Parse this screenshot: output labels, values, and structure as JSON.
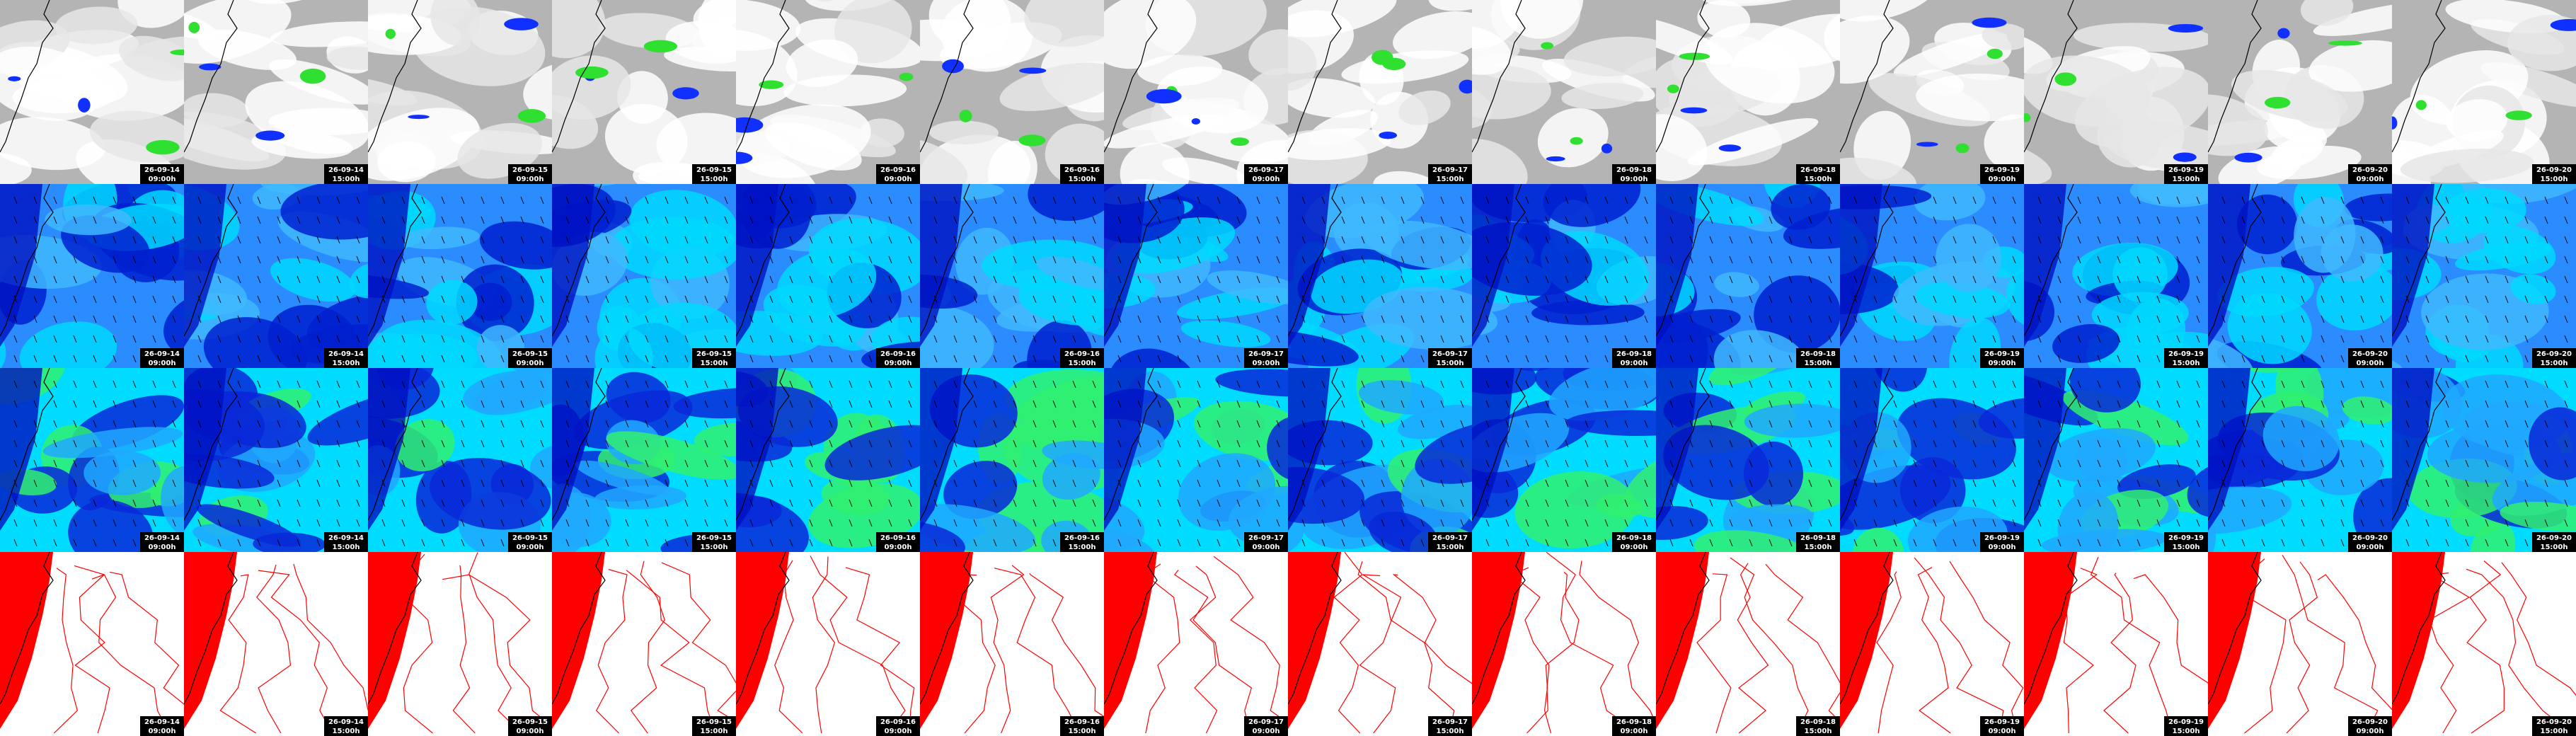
{
  "columns": [
    {
      "date": "26-09-14",
      "time": "09:00h"
    },
    {
      "date": "26-09-14",
      "time": "15:00h"
    },
    {
      "date": "26-09-15",
      "time": "09:00h"
    },
    {
      "date": "26-09-15",
      "time": "15:00h"
    },
    {
      "date": "26-09-16",
      "time": "09:00h"
    },
    {
      "date": "26-09-16",
      "time": "15:00h"
    },
    {
      "date": "26-09-17",
      "time": "09:00h"
    },
    {
      "date": "26-09-17",
      "time": "15:00h"
    },
    {
      "date": "26-09-18",
      "time": "09:00h"
    },
    {
      "date": "26-09-18",
      "time": "15:00h"
    },
    {
      "date": "26-09-19",
      "time": "09:00h"
    },
    {
      "date": "26-09-19",
      "time": "15:00h"
    },
    {
      "date": "26-09-20",
      "time": "09:00h"
    },
    {
      "date": "26-09-20",
      "time": "15:00h"
    }
  ]
}
